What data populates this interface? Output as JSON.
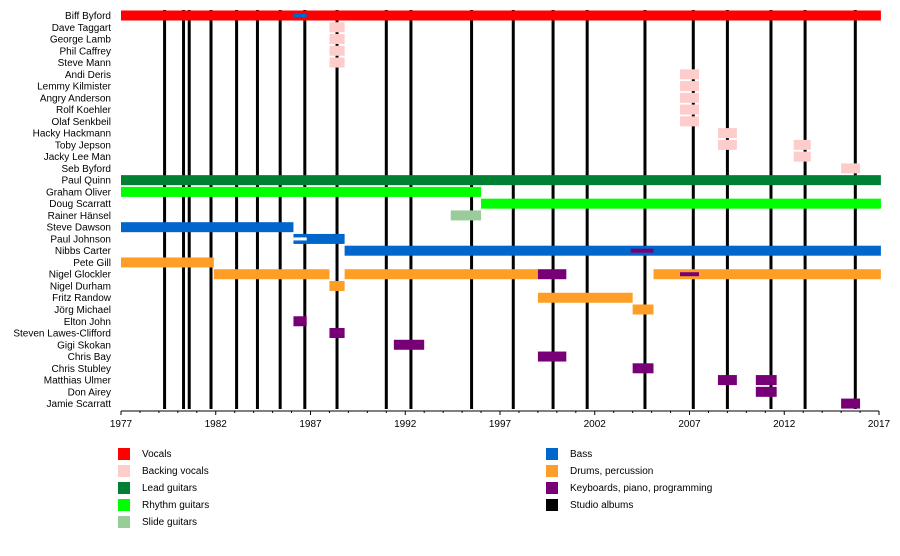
{
  "chart_data": {
    "type": "timeline",
    "title": "",
    "xlabel": "",
    "ylabel": "",
    "xlim": [
      1977,
      2017
    ],
    "x_ticks": [
      "1977",
      "1982",
      "1987",
      "1992",
      "1997",
      "2002",
      "2007",
      "2012",
      "2017"
    ],
    "grid": false,
    "legend_position": "bottom",
    "roles": {
      "vocals": {
        "label": "Vocals",
        "color": "#ff0000"
      },
      "backing": {
        "label": "Backing vocals",
        "color": "#ffcccc"
      },
      "lead": {
        "label": "Lead guitars",
        "color": "#008033"
      },
      "rhythm": {
        "label": "Rhythm guitars",
        "color": "#00ff00"
      },
      "slide": {
        "label": "Slide guitars",
        "color": "#99cc99"
      },
      "bass": {
        "label": "Bass",
        "color": "#0066cc"
      },
      "drums": {
        "label": "Drums, percussion",
        "color": "#ff9e26"
      },
      "keys": {
        "label": "Keyboards, piano, programming",
        "color": "#770077"
      },
      "albums": {
        "label": "Studio albums",
        "color": "#000000"
      }
    },
    "legend_left": [
      "vocals",
      "backing",
      "lead",
      "rhythm",
      "slide"
    ],
    "legend_right": [
      "bass",
      "drums",
      "keys",
      "albums"
    ],
    "studio_albums": [
      1979.3,
      1980.3,
      1980.6,
      1981.75,
      1983.1,
      1984.2,
      1985.4,
      1986.7,
      1988.4,
      1991.0,
      1992.3,
      1995.5,
      1997.7,
      1999.8,
      2001.6,
      2004.65,
      2007.2,
      2009.0,
      2011.3,
      2013.1,
      2015.75
    ],
    "members": [
      {
        "name": "Biff Byford",
        "bars": [
          {
            "role": "vocals",
            "start": 1977,
            "end": 2017.1
          }
        ],
        "overlays": [
          {
            "role": "bass",
            "start": 1986.1,
            "end": 1986.8
          }
        ]
      },
      {
        "name": "Dave Taggart",
        "bars": [
          {
            "role": "backing",
            "start": 1988.0,
            "end": 1988.8
          }
        ]
      },
      {
        "name": "George Lamb",
        "bars": [
          {
            "role": "backing",
            "start": 1988.0,
            "end": 1988.8
          }
        ]
      },
      {
        "name": "Phil Caffrey",
        "bars": [
          {
            "role": "backing",
            "start": 1988.0,
            "end": 1988.8
          }
        ]
      },
      {
        "name": "Steve Mann",
        "bars": [
          {
            "role": "backing",
            "start": 1988.0,
            "end": 1988.8
          }
        ]
      },
      {
        "name": "Andi Deris",
        "bars": [
          {
            "role": "backing",
            "start": 2006.5,
            "end": 2007.5
          }
        ]
      },
      {
        "name": "Lemmy Kilmister",
        "bars": [
          {
            "role": "backing",
            "start": 2006.5,
            "end": 2007.5
          }
        ]
      },
      {
        "name": "Angry Anderson",
        "bars": [
          {
            "role": "backing",
            "start": 2006.5,
            "end": 2007.5
          }
        ]
      },
      {
        "name": "Rolf Koehler",
        "bars": [
          {
            "role": "backing",
            "start": 2006.5,
            "end": 2007.5
          }
        ]
      },
      {
        "name": "Olaf Senkbeil",
        "bars": [
          {
            "role": "backing",
            "start": 2006.5,
            "end": 2007.5
          }
        ]
      },
      {
        "name": "Hacky Hackmann",
        "bars": [
          {
            "role": "backing",
            "start": 2008.5,
            "end": 2009.5
          }
        ]
      },
      {
        "name": "Toby Jepson",
        "bars": [
          {
            "role": "backing",
            "start": 2008.5,
            "end": 2009.5
          },
          {
            "role": "backing",
            "start": 2012.5,
            "end": 2013.4
          }
        ]
      },
      {
        "name": "Jacky Lee Man",
        "bars": [
          {
            "role": "backing",
            "start": 2012.5,
            "end": 2013.4
          }
        ]
      },
      {
        "name": "Seb Byford",
        "bars": [
          {
            "role": "backing",
            "start": 2015.0,
            "end": 2016.0
          }
        ]
      },
      {
        "name": "Paul Quinn",
        "bars": [
          {
            "role": "lead",
            "start": 1977,
            "end": 2017.1
          }
        ]
      },
      {
        "name": "Graham Oliver",
        "bars": [
          {
            "role": "rhythm",
            "start": 1977,
            "end": 1996.0
          }
        ]
      },
      {
        "name": "Doug Scarratt",
        "bars": [
          {
            "role": "rhythm",
            "start": 1996.0,
            "end": 2017.1
          }
        ]
      },
      {
        "name": "Rainer Hänsel",
        "bars": [
          {
            "role": "slide",
            "start": 1994.4,
            "end": 1996.0
          }
        ]
      },
      {
        "name": "Steve Dawson",
        "bars": [
          {
            "role": "bass",
            "start": 1977,
            "end": 1986.1
          }
        ]
      },
      {
        "name": "Paul Johnson",
        "bars": [
          {
            "role": "bass",
            "start": 1986.1,
            "end": 1988.8
          }
        ],
        "stripes": [
          {
            "start": 1986.1,
            "end": 1986.8
          }
        ]
      },
      {
        "name": "Nibbs Carter",
        "bars": [
          {
            "role": "bass",
            "start": 1988.8,
            "end": 2017.1
          }
        ],
        "overlays": [
          {
            "role": "keys",
            "start": 2003.9,
            "end": 2005.1
          }
        ]
      },
      {
        "name": "Pete Gill",
        "bars": [
          {
            "role": "drums",
            "start": 1977,
            "end": 1981.9
          }
        ]
      },
      {
        "name": "Nigel Glockler",
        "bars": [
          {
            "role": "drums",
            "start": 1981.9,
            "end": 1988.0
          },
          {
            "role": "drums",
            "start": 1988.8,
            "end": 1999.0
          },
          {
            "role": "keys",
            "start": 1999.0,
            "end": 2000.5
          },
          {
            "role": "drums",
            "start": 2005.1,
            "end": 2017.1
          }
        ],
        "overlays": [
          {
            "role": "keys",
            "start": 2006.5,
            "end": 2007.5
          }
        ]
      },
      {
        "name": "Nigel Durham",
        "bars": [
          {
            "role": "drums",
            "start": 1988.0,
            "end": 1988.8
          }
        ]
      },
      {
        "name": "Fritz Randow",
        "bars": [
          {
            "role": "drums",
            "start": 1999.0,
            "end": 2004.0
          }
        ]
      },
      {
        "name": "Jörg Michael",
        "bars": [
          {
            "role": "drums",
            "start": 2004.0,
            "end": 2005.1
          }
        ]
      },
      {
        "name": "Elton John",
        "bars": [
          {
            "role": "keys",
            "start": 1986.1,
            "end": 1986.8
          }
        ]
      },
      {
        "name": "Steven Lawes-Clifford",
        "bars": [
          {
            "role": "keys",
            "start": 1988.0,
            "end": 1988.8
          }
        ]
      },
      {
        "name": "Gigi Skokan",
        "bars": [
          {
            "role": "keys",
            "start": 1991.4,
            "end": 1993.0
          }
        ]
      },
      {
        "name": "Chris Bay",
        "bars": [
          {
            "role": "keys",
            "start": 1999.0,
            "end": 2000.5
          }
        ]
      },
      {
        "name": "Chris Stubley",
        "bars": [
          {
            "role": "keys",
            "start": 2004.0,
            "end": 2005.1
          }
        ]
      },
      {
        "name": "Matthias Ulmer",
        "bars": [
          {
            "role": "keys",
            "start": 2008.5,
            "end": 2009.5
          },
          {
            "role": "keys",
            "start": 2010.5,
            "end": 2011.6
          }
        ]
      },
      {
        "name": "Don Airey",
        "bars": [
          {
            "role": "keys",
            "start": 2010.5,
            "end": 2011.6
          }
        ]
      },
      {
        "name": "Jamie Scarratt",
        "bars": [
          {
            "role": "keys",
            "start": 2015.0,
            "end": 2016.0
          }
        ]
      }
    ]
  }
}
